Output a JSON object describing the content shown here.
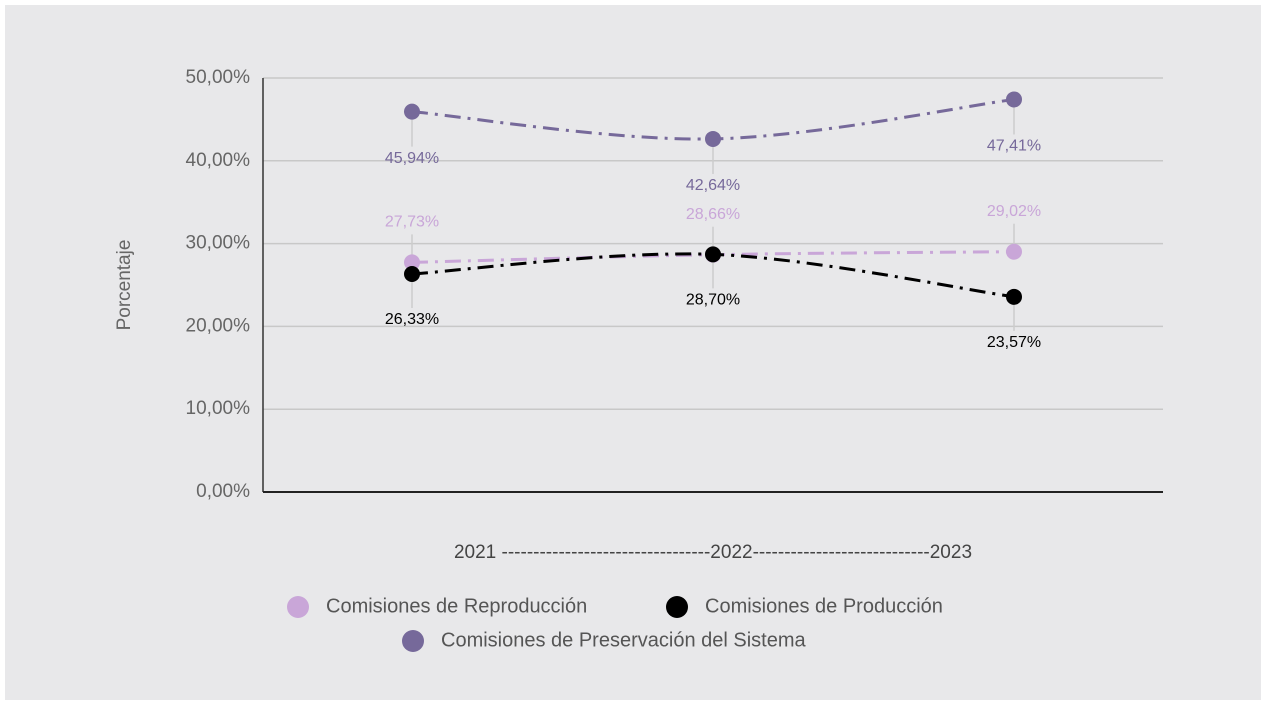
{
  "chart_data": {
    "type": "line",
    "x_label": "2021 ---------------------------------2022----------------------------2023",
    "y_label": "Porcentaje",
    "categories": [
      null,
      null,
      null
    ],
    "ylim": [
      0,
      50
    ],
    "yticks": [
      {
        "value": 0,
        "label": "0,00%"
      },
      {
        "value": 10,
        "label": "10,00%"
      },
      {
        "value": 20,
        "label": "20,00%"
      },
      {
        "value": 30,
        "label": "30,00%"
      },
      {
        "value": 40,
        "label": "40,00%"
      },
      {
        "value": 50,
        "label": "50,00%"
      }
    ],
    "grid": true,
    "series": [
      {
        "name": "Comisiones de Reproducción",
        "color": "#c9a6d8",
        "values": [
          27.73,
          28.66,
          29.02
        ],
        "value_labels": [
          "27,73%",
          "28,66%",
          "29,02%"
        ]
      },
      {
        "name": "Comisiones de Producción",
        "color": "#000000",
        "values": [
          26.33,
          28.7,
          23.57
        ],
        "value_labels": [
          "26,33%",
          "28,70%",
          "23,57%"
        ]
      },
      {
        "name": "Comisiones de Preservación del Sistema",
        "color": "#76699a",
        "values": [
          45.94,
          42.64,
          47.41
        ],
        "value_labels": [
          "45,94%",
          "42,64%",
          "47,41%"
        ]
      }
    ]
  }
}
